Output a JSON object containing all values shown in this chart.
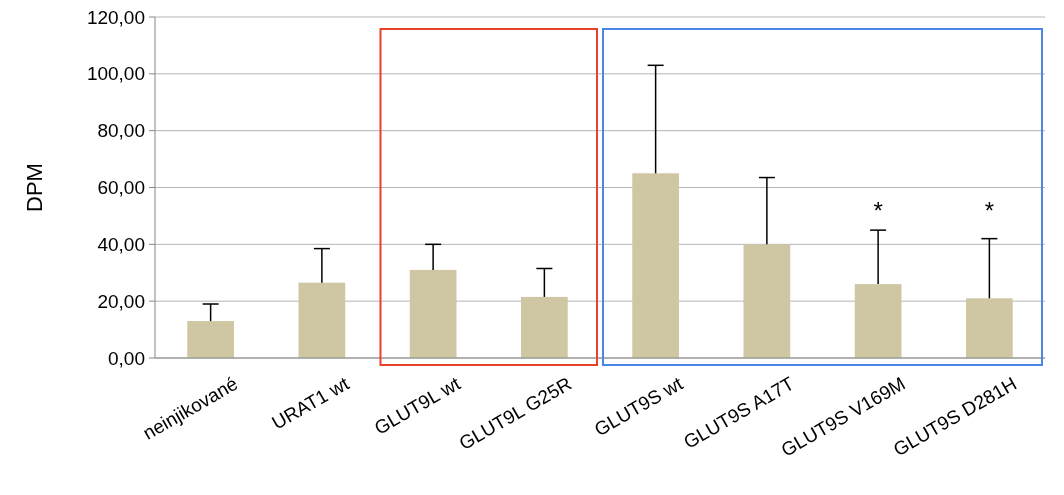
{
  "chart_data": {
    "type": "bar",
    "ylabel": "DPM",
    "categories": [
      "neinjikované",
      "URAT1 wt",
      "GLUT9L wt",
      "GLUT9L G25R",
      "GLUT9S wt",
      "GLUT9S A17T",
      "GLUT9S V169M",
      "GLUT9S D281H"
    ],
    "values": [
      13,
      26.5,
      31,
      21.5,
      65,
      40,
      26,
      21
    ],
    "errors": [
      [
        13,
        19
      ],
      [
        26.5,
        38.5
      ],
      [
        31,
        40
      ],
      [
        21.5,
        31.5
      ],
      [
        65,
        103
      ],
      [
        40,
        63.5
      ],
      [
        26,
        45
      ],
      [
        21,
        42
      ]
    ],
    "color": "#cfc7a4",
    "ylim": [
      0,
      120
    ],
    "yticks": [
      {
        "value": 0,
        "label": "0,00"
      },
      {
        "value": 20,
        "label": "20,00"
      },
      {
        "value": 40,
        "label": "40,00"
      },
      {
        "value": 60,
        "label": "60,00"
      },
      {
        "value": 80,
        "label": "80,00"
      },
      {
        "value": 100,
        "label": "100,00"
      },
      {
        "value": 120,
        "label": "120,00"
      }
    ],
    "grid": "y",
    "annotations": [
      "*",
      "*"
    ]
  }
}
